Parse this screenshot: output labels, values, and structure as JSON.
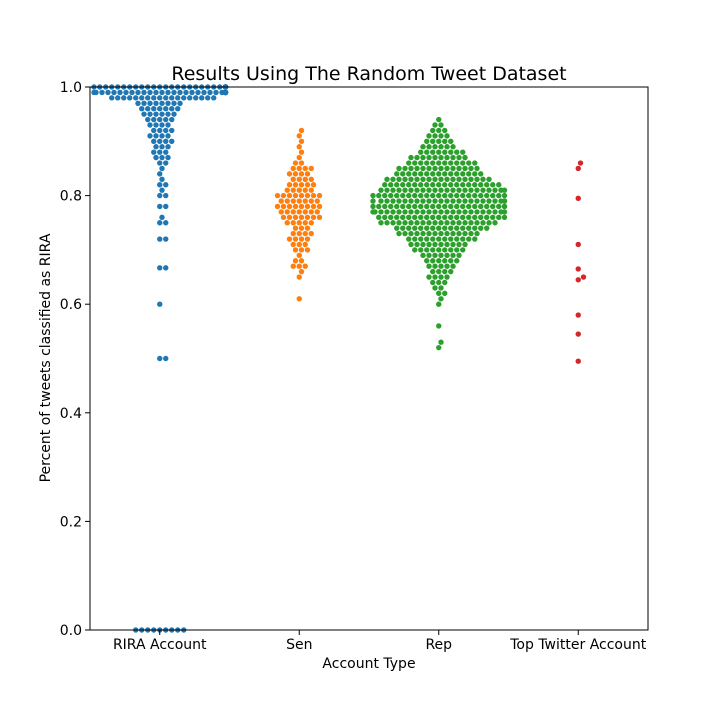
{
  "chart_data": {
    "type": "scatter",
    "subtype": "swarm",
    "title": "Results Using The Random Tweet Dataset",
    "xlabel": "Account Type",
    "ylabel": "Percent of tweets classified as RIRA",
    "ylim": [
      0,
      1
    ],
    "yticks": [
      "0.0",
      "0.2",
      "0.4",
      "0.6",
      "0.8",
      "1.0"
    ],
    "grid": false,
    "categories": [
      "RIRA Account",
      "Sen",
      "Rep",
      "Top Twitter Account"
    ],
    "series": [
      {
        "color": "#1f77b4",
        "values": [
          0,
          0,
          0,
          0,
          0,
          0,
          0,
          0,
          0,
          0.5,
          0.5,
          0.6,
          0.667,
          0.667,
          0.72,
          0.72,
          0.75,
          0.75,
          0.76,
          0.78,
          0.78,
          0.8,
          0.8,
          0.81,
          0.82,
          0.82,
          0.83,
          0.84,
          0.85,
          0.86,
          0.86,
          0.87,
          0.87,
          0.87,
          0.88,
          0.88,
          0.88,
          0.89,
          0.89,
          0.89,
          0.9,
          0.9,
          0.9,
          0.9,
          0.91,
          0.91,
          0.91,
          0.91,
          0.92,
          0.92,
          0.92,
          0.92,
          0.93,
          0.93,
          0.93,
          0.93,
          0.94,
          0.94,
          0.94,
          0.94,
          0.94,
          0.95,
          0.95,
          0.95,
          0.95,
          0.95,
          0.95,
          0.96,
          0.96,
          0.96,
          0.96,
          0.96,
          0.96,
          0.96,
          0.97,
          0.97,
          0.97,
          0.97,
          0.97,
          0.97,
          0.97,
          0.97,
          0.98,
          0.98,
          0.98,
          0.98,
          0.98,
          0.98,
          0.98,
          0.98,
          0.98,
          0.98,
          0.98,
          0.98,
          0.98,
          0.98,
          0.98,
          0.98,
          0.98,
          0.98,
          0.99,
          0.99,
          0.99,
          0.99,
          0.99,
          0.99,
          0.99,
          0.99,
          0.99,
          0.99,
          0.99,
          0.99,
          0.99,
          0.99,
          0.99,
          0.99,
          0.99,
          0.99,
          0.99,
          0.99,
          0.99,
          0.99,
          0.99,
          0.99,
          0.99,
          0.99,
          0.99,
          0.99,
          0.99,
          0.99,
          0.99,
          0.99,
          0.99,
          0.99,
          0.99,
          0.99,
          0.99,
          0.99,
          0.99,
          0.99,
          1,
          1,
          1,
          1,
          1,
          1,
          1,
          1,
          1,
          1,
          1,
          1,
          1,
          1,
          1,
          1,
          1,
          1,
          1,
          1,
          1,
          1,
          1,
          1,
          1,
          1,
          1,
          1,
          1,
          1,
          1,
          1,
          1,
          1,
          1,
          1,
          1,
          1,
          1,
          1
        ]
      },
      {
        "color": "#ff7f0e",
        "values": [
          0.61,
          0.65,
          0.66,
          0.67,
          0.67,
          0.67,
          0.68,
          0.68,
          0.69,
          0.7,
          0.7,
          0.7,
          0.71,
          0.71,
          0.71,
          0.72,
          0.72,
          0.72,
          0.72,
          0.73,
          0.73,
          0.73,
          0.73,
          0.74,
          0.74,
          0.74,
          0.75,
          0.75,
          0.75,
          0.75,
          0.75,
          0.76,
          0.76,
          0.76,
          0.76,
          0.76,
          0.76,
          0.76,
          0.77,
          0.77,
          0.77,
          0.77,
          0.77,
          0.77,
          0.77,
          0.78,
          0.78,
          0.78,
          0.78,
          0.78,
          0.78,
          0.78,
          0.78,
          0.79,
          0.79,
          0.79,
          0.79,
          0.79,
          0.79,
          0.79,
          0.8,
          0.8,
          0.8,
          0.8,
          0.8,
          0.8,
          0.8,
          0.8,
          0.81,
          0.81,
          0.81,
          0.81,
          0.81,
          0.82,
          0.82,
          0.82,
          0.82,
          0.82,
          0.83,
          0.83,
          0.83,
          0.83,
          0.84,
          0.84,
          0.84,
          0.84,
          0.85,
          0.85,
          0.85,
          0.85,
          0.86,
          0.86,
          0.87,
          0.88,
          0.89,
          0.9,
          0.91,
          0.92
        ]
      },
      {
        "color": "#2ca02c",
        "values": [
          0.52,
          0.53,
          0.56,
          0.6,
          0.61,
          0.62,
          0.62,
          0.63,
          0.63,
          0.64,
          0.64,
          0.64,
          0.65,
          0.65,
          0.65,
          0.65,
          0.66,
          0.66,
          0.66,
          0.66,
          0.67,
          0.67,
          0.67,
          0.67,
          0.67,
          0.68,
          0.68,
          0.68,
          0.68,
          0.68,
          0.68,
          0.69,
          0.69,
          0.69,
          0.69,
          0.69,
          0.69,
          0.69,
          0.7,
          0.7,
          0.7,
          0.7,
          0.7,
          0.7,
          0.7,
          0.7,
          0.7,
          0.71,
          0.71,
          0.71,
          0.71,
          0.71,
          0.71,
          0.71,
          0.71,
          0.71,
          0.71,
          0.72,
          0.72,
          0.72,
          0.72,
          0.72,
          0.72,
          0.72,
          0.72,
          0.72,
          0.72,
          0.72,
          0.72,
          0.73,
          0.73,
          0.73,
          0.73,
          0.73,
          0.73,
          0.73,
          0.73,
          0.73,
          0.73,
          0.73,
          0.73,
          0.73,
          0.73,
          0.74,
          0.74,
          0.74,
          0.74,
          0.74,
          0.74,
          0.74,
          0.74,
          0.74,
          0.74,
          0.74,
          0.74,
          0.74,
          0.74,
          0.74,
          0.74,
          0.75,
          0.75,
          0.75,
          0.75,
          0.75,
          0.75,
          0.75,
          0.75,
          0.75,
          0.75,
          0.75,
          0.75,
          0.75,
          0.75,
          0.75,
          0.75,
          0.75,
          0.75,
          0.75,
          0.75,
          0.76,
          0.76,
          0.76,
          0.76,
          0.76,
          0.76,
          0.76,
          0.76,
          0.76,
          0.76,
          0.76,
          0.76,
          0.76,
          0.76,
          0.76,
          0.76,
          0.76,
          0.76,
          0.76,
          0.76,
          0.76,
          0.76,
          0.77,
          0.77,
          0.77,
          0.77,
          0.77,
          0.77,
          0.77,
          0.77,
          0.77,
          0.77,
          0.77,
          0.77,
          0.77,
          0.77,
          0.77,
          0.77,
          0.77,
          0.77,
          0.77,
          0.77,
          0.77,
          0.77,
          0.77,
          0.77,
          0.78,
          0.78,
          0.78,
          0.78,
          0.78,
          0.78,
          0.78,
          0.78,
          0.78,
          0.78,
          0.78,
          0.78,
          0.78,
          0.78,
          0.78,
          0.78,
          0.78,
          0.78,
          0.78,
          0.78,
          0.78,
          0.78,
          0.78,
          0.78,
          0.79,
          0.79,
          0.79,
          0.79,
          0.79,
          0.79,
          0.79,
          0.79,
          0.79,
          0.79,
          0.79,
          0.79,
          0.79,
          0.79,
          0.79,
          0.79,
          0.79,
          0.79,
          0.79,
          0.79,
          0.79,
          0.79,
          0.79,
          0.79,
          0.8,
          0.8,
          0.8,
          0.8,
          0.8,
          0.8,
          0.8,
          0.8,
          0.8,
          0.8,
          0.8,
          0.8,
          0.8,
          0.8,
          0.8,
          0.8,
          0.8,
          0.8,
          0.8,
          0.8,
          0.8,
          0.8,
          0.8,
          0.81,
          0.81,
          0.81,
          0.81,
          0.81,
          0.81,
          0.81,
          0.81,
          0.81,
          0.81,
          0.81,
          0.81,
          0.81,
          0.81,
          0.81,
          0.81,
          0.81,
          0.81,
          0.81,
          0.81,
          0.81,
          0.81,
          0.82,
          0.82,
          0.82,
          0.82,
          0.82,
          0.82,
          0.82,
          0.82,
          0.82,
          0.82,
          0.82,
          0.82,
          0.82,
          0.82,
          0.82,
          0.82,
          0.82,
          0.82,
          0.82,
          0.82,
          0.83,
          0.83,
          0.83,
          0.83,
          0.83,
          0.83,
          0.83,
          0.83,
          0.83,
          0.83,
          0.83,
          0.83,
          0.83,
          0.83,
          0.83,
          0.83,
          0.83,
          0.83,
          0.84,
          0.84,
          0.84,
          0.84,
          0.84,
          0.84,
          0.84,
          0.84,
          0.84,
          0.84,
          0.84,
          0.84,
          0.84,
          0.84,
          0.84,
          0.85,
          0.85,
          0.85,
          0.85,
          0.85,
          0.85,
          0.85,
          0.85,
          0.85,
          0.85,
          0.85,
          0.85,
          0.85,
          0.85,
          0.86,
          0.86,
          0.86,
          0.86,
          0.86,
          0.86,
          0.86,
          0.86,
          0.86,
          0.86,
          0.86,
          0.86,
          0.87,
          0.87,
          0.87,
          0.87,
          0.87,
          0.87,
          0.87,
          0.87,
          0.87,
          0.87,
          0.88,
          0.88,
          0.88,
          0.88,
          0.88,
          0.88,
          0.88,
          0.88,
          0.89,
          0.89,
          0.89,
          0.89,
          0.89,
          0.89,
          0.9,
          0.9,
          0.9,
          0.9,
          0.9,
          0.91,
          0.91,
          0.91,
          0.91,
          0.92,
          0.92,
          0.92,
          0.93,
          0.93,
          0.94
        ]
      },
      {
        "color": "#d62728",
        "values": [
          0.86,
          0.85,
          0.795,
          0.71,
          0.665,
          0.65,
          0.645,
          0.58,
          0.545,
          0.495
        ]
      }
    ]
  }
}
